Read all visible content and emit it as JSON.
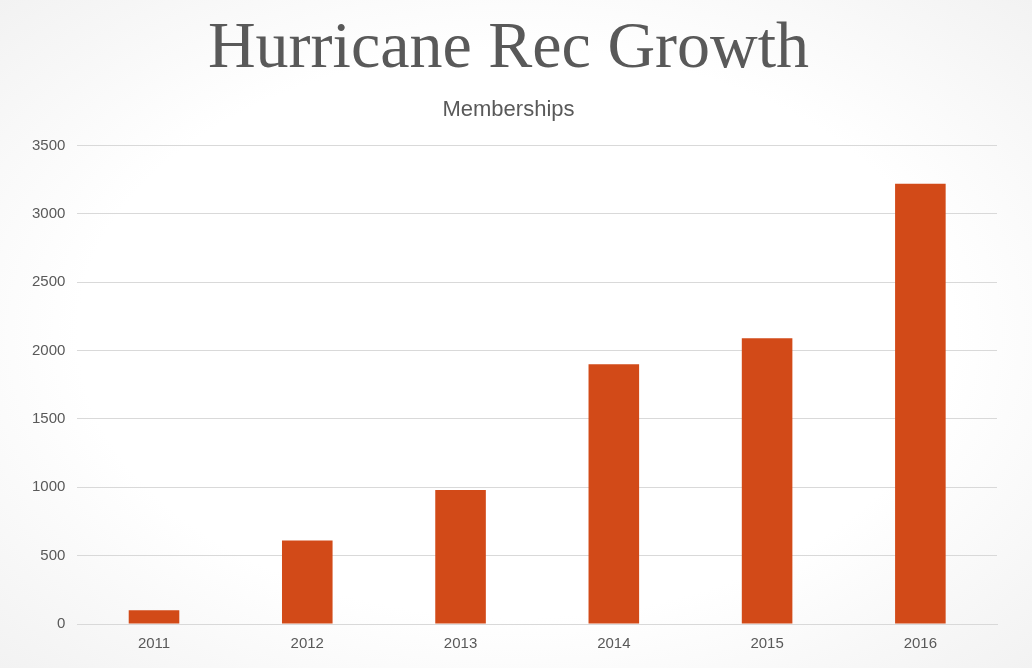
{
  "chart_data": {
    "type": "bar",
    "title": "Hurricane Rec Growth",
    "subtitle": "Memberships",
    "categories": [
      "2011",
      "2012",
      "2013",
      "2014",
      "2015",
      "2016"
    ],
    "values": [
      100,
      610,
      980,
      1900,
      2090,
      3220
    ],
    "color": "#d24a18",
    "ylim": [
      0,
      3500
    ],
    "yticks": [
      0,
      500,
      1000,
      1500,
      2000,
      2500,
      3000,
      3500
    ],
    "grid": true
  }
}
